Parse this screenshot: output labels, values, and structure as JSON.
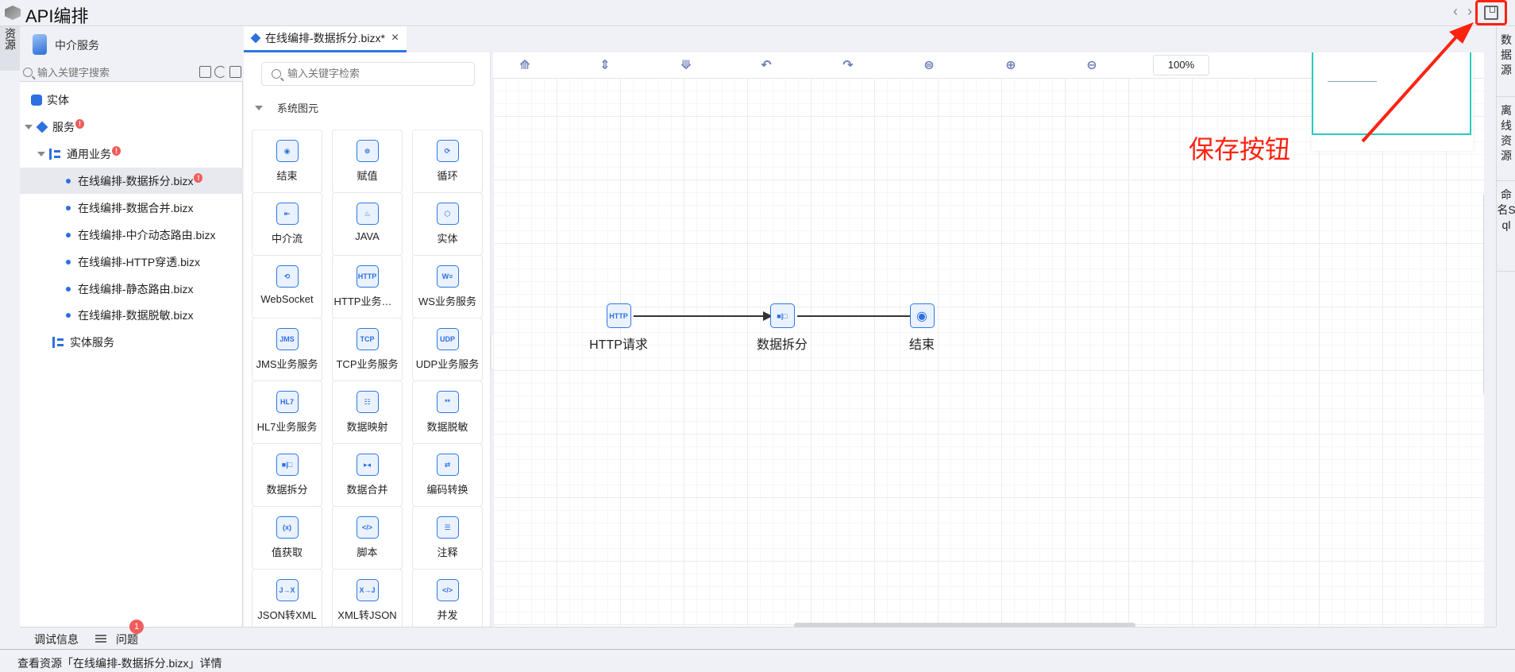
{
  "app": {
    "title": "API编排",
    "save_tooltip": "保存按钮"
  },
  "left_vtab": "资源",
  "left_panel": {
    "title": "中介服务",
    "search_placeholder": "输入关键字搜索",
    "tree": [
      {
        "label": "实体",
        "icon": "database-icon",
        "level": 0
      },
      {
        "label": "服务",
        "icon": "layers-icon",
        "level": 0,
        "expanded": true,
        "error": true
      },
      {
        "label": "通用业务",
        "icon": "tree-icon",
        "level": 1,
        "expanded": true,
        "error": true
      },
      {
        "label": "在线编排-数据拆分.bizx",
        "level": 2,
        "selected": true,
        "error": true
      },
      {
        "label": "在线编排-数据合并.bizx",
        "level": 2
      },
      {
        "label": "在线编排-中介动态路由.bizx",
        "level": 2
      },
      {
        "label": "在线编排-HTTP穿透.bizx",
        "level": 2
      },
      {
        "label": "在线编排-静态路由.bizx",
        "level": 2
      },
      {
        "label": "在线编排-数据脱敏.bizx",
        "level": 2
      },
      {
        "label": "实体服务",
        "icon": "tree-icon",
        "level": 1
      }
    ]
  },
  "tab": {
    "label": "在线编排-数据拆分.bizx*"
  },
  "palette": {
    "search_placeholder": "输入关键字检索",
    "group": "系统图元",
    "items": [
      {
        "label": "结束",
        "glyph": "◉"
      },
      {
        "label": "赋值",
        "glyph": "⊜"
      },
      {
        "label": "循环",
        "glyph": "⟳"
      },
      {
        "label": "中介流",
        "glyph": "⇤"
      },
      {
        "label": "JAVA",
        "glyph": "♨"
      },
      {
        "label": "实体",
        "glyph": "⬡"
      },
      {
        "label": "WebSocket",
        "glyph": "⟲"
      },
      {
        "label": "HTTP业务服务",
        "glyph": "HTTP"
      },
      {
        "label": "WS业务服务",
        "glyph": "W≡"
      },
      {
        "label": "JMS业务服务",
        "glyph": "JMS"
      },
      {
        "label": "TCP业务服务",
        "glyph": "TCP"
      },
      {
        "label": "UDP业务服务",
        "glyph": "UDP"
      },
      {
        "label": "HL7业务服务",
        "glyph": "HL7"
      },
      {
        "label": "数据映射",
        "glyph": "☷"
      },
      {
        "label": "数据脱敏",
        "glyph": "**"
      },
      {
        "label": "数据拆分",
        "glyph": "■|□"
      },
      {
        "label": "数据合并",
        "glyph": "▸◂"
      },
      {
        "label": "编码转换",
        "glyph": "⇄"
      },
      {
        "label": "值获取",
        "glyph": "(x)"
      },
      {
        "label": "脚本",
        "glyph": "</>"
      },
      {
        "label": "注释",
        "glyph": "☰"
      },
      {
        "label": "JSON转XML",
        "glyph": "J→X"
      },
      {
        "label": "XML转JSON",
        "glyph": "X→J"
      },
      {
        "label": "并发",
        "glyph": "</>"
      }
    ]
  },
  "toolbar": {
    "icons": [
      "align-top-icon",
      "align-middle-icon",
      "align-bottom-icon",
      "undo-icon",
      "redo-icon",
      "fit-icon",
      "zoom-in-icon",
      "zoom-out-icon"
    ],
    "zoom": "100%"
  },
  "flow": {
    "nodes": [
      {
        "label": "HTTP请求",
        "glyph": "HTTP"
      },
      {
        "label": "数据拆分",
        "glyph": "■|□"
      },
      {
        "label": "结束",
        "glyph": "◉"
      }
    ]
  },
  "right_bar": [
    "数据源",
    "离线资源",
    "命名Sql"
  ],
  "bottom": {
    "debug": "调试信息",
    "problems": "问题",
    "problems_count": "1"
  },
  "status": "查看资源「在线编排-数据拆分.bizx」详情",
  "colors": {
    "accent": "#2d78e0",
    "annotation": "#ff2211",
    "minimap": "#2ccbbb",
    "error": "#f25c5c"
  }
}
